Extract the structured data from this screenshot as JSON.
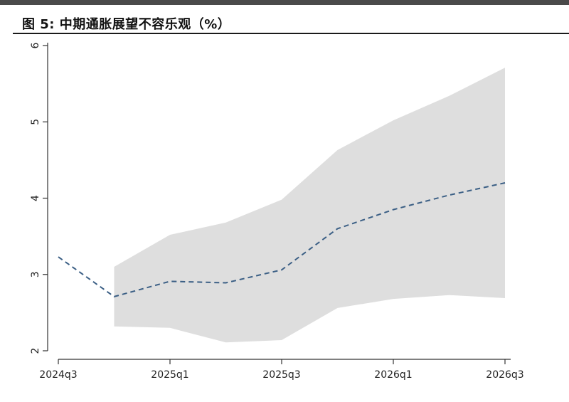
{
  "title": "图 5:  中期通胀展望不容乐观（%）",
  "colors": {
    "band": "#dedede",
    "line": "#3b5f85",
    "axis": "#333333"
  },
  "chart_data": {
    "type": "line",
    "title": "图 5:  中期通胀展望不容乐观（%）",
    "xlabel": "",
    "ylabel": "",
    "x": [
      "2024q3",
      "2024q4",
      "2025q1",
      "2025q2",
      "2025q3",
      "2025q4",
      "2026q1",
      "2026q2",
      "2026q3"
    ],
    "x_tick_labels": [
      "2024q3",
      "2025q1",
      "2025q3",
      "2026q1",
      "2026q3"
    ],
    "y_tick_labels": [
      "2",
      "3",
      "4",
      "5",
      "6"
    ],
    "ylim": [
      2,
      6
    ],
    "grid": false,
    "legend": "none",
    "series": [
      {
        "style": "dashed",
        "values": [
          3.23,
          2.71,
          2.91,
          2.89,
          3.06,
          3.6,
          3.85,
          4.04,
          4.2
        ]
      }
    ],
    "band": {
      "start_index": 1,
      "lower": [
        2.32,
        2.3,
        2.11,
        2.14,
        2.56,
        2.68,
        2.73,
        2.69
      ],
      "upper": [
        3.1,
        3.52,
        3.68,
        3.98,
        4.63,
        5.02,
        5.34,
        5.71
      ]
    }
  }
}
